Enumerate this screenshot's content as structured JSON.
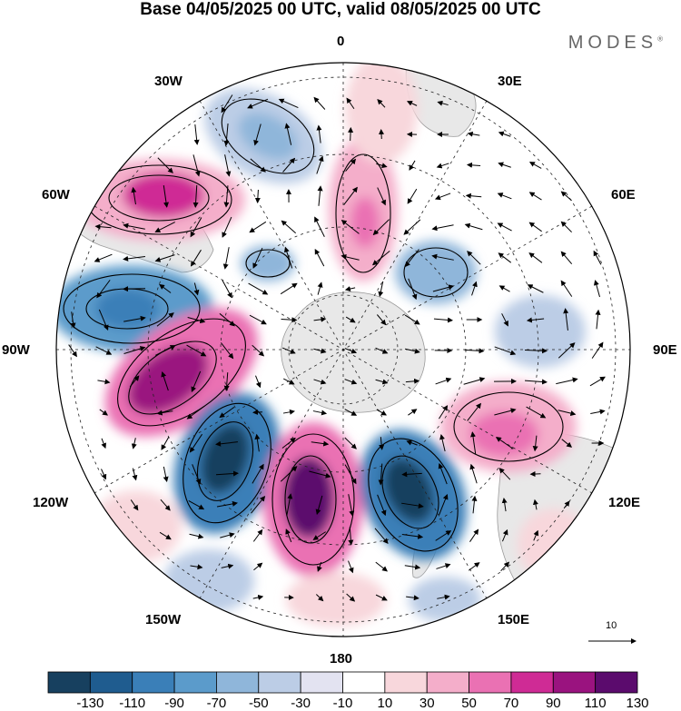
{
  "title": "Base 04/05/2025 00 UTC, valid 08/05/2025 00 UTC",
  "logo": {
    "text": "MODES",
    "mark": "®"
  },
  "longitude_labels": {
    "lon_0": "0",
    "lon_30e": "30E",
    "lon_60e": "60E",
    "lon_90e": "90E",
    "lon_120e": "120E",
    "lon_150e": "150E",
    "lon_180": "180",
    "lon_150w": "150W",
    "lon_120w": "120W",
    "lon_90w": "90W",
    "lon_60w": "60W",
    "lon_30w": "30W"
  },
  "vector_reference": {
    "value": "10"
  },
  "colorbar": {
    "labels": [
      "-130",
      "-110",
      "-90",
      "-70",
      "-50",
      "-30",
      "-10",
      "10",
      "30",
      "50",
      "70",
      "90",
      "110",
      "130"
    ],
    "colors": [
      "#17405f",
      "#1f5c8f",
      "#3a7fb8",
      "#5b9bcb",
      "#8fb6da",
      "#bccde6",
      "#e3e3f1",
      "#ffffff",
      "#f8d7dc",
      "#f4aeca",
      "#ea71b3",
      "#cf2b95",
      "#9a137f",
      "#5b0b6d"
    ]
  },
  "map": {
    "projection": "south-polar-stereographic",
    "field": "anomaly with wind vectors",
    "colors": {
      "land": "#e9e9e9",
      "coast": "#9a9a9a",
      "grid": "#222222"
    }
  }
}
